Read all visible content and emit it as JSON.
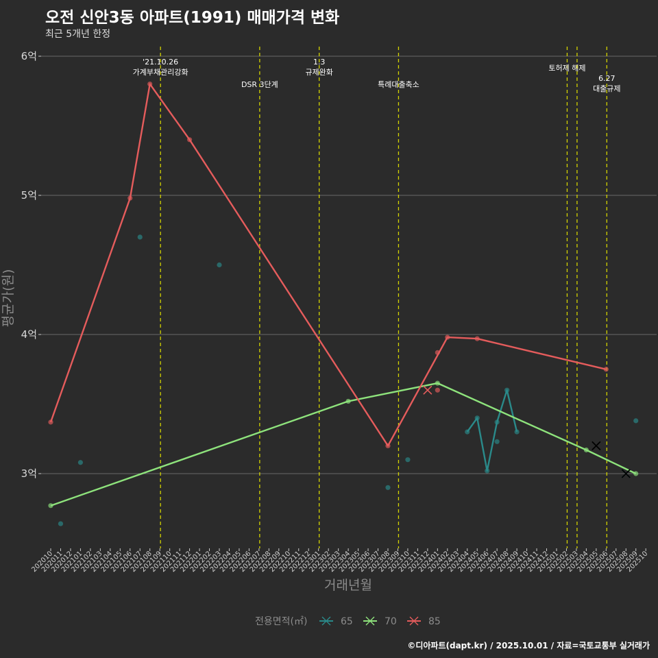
{
  "header": {
    "title": "오전 신안3동 아파트(1991) 매매가격 변화",
    "subtitle": "최근 5개년 한정"
  },
  "caption": "©디아파트(dapt.kr) / 2025.10.01 / 자료=국토교통부 실거래가",
  "colors": {
    "background": "#2b2b2b",
    "grid": "#6a6a6a",
    "vline": "#d4d400",
    "s65": "#2a8a8a",
    "s70": "#8ee37c",
    "s85": "#e55c5c"
  },
  "chart_data": {
    "type": "line",
    "title": "오전 신안3동 아파트(1991) 매매가격 변화",
    "xlabel": "거래년월",
    "ylabel": "평균가(원)",
    "ylim": [
      2.5,
      6.05
    ],
    "yticks": [
      {
        "value": 3,
        "label": "3억"
      },
      {
        "value": 4,
        "label": "4억"
      },
      {
        "value": 5,
        "label": "5억"
      },
      {
        "value": 6,
        "label": "6억"
      }
    ],
    "x": [
      "202010",
      "202011",
      "202012",
      "202101",
      "202102",
      "202103",
      "202104",
      "202105",
      "202106",
      "202107",
      "202108",
      "202109",
      "202110",
      "202111",
      "202112",
      "202201",
      "202202",
      "202203",
      "202204",
      "202205",
      "202206",
      "202207",
      "202208",
      "202209",
      "202210",
      "202211",
      "202212",
      "202301",
      "202302",
      "202303",
      "202304",
      "202305",
      "202306",
      "202307",
      "202308",
      "202309",
      "202310",
      "202311",
      "202312",
      "202401",
      "202402",
      "202403",
      "202404",
      "202405",
      "202406",
      "202407",
      "202408",
      "202409",
      "202410",
      "202411",
      "202412",
      "202501",
      "202502",
      "202503",
      "202504",
      "202505",
      "202506",
      "202507",
      "202508",
      "202509",
      "202510"
    ],
    "legend": {
      "title": "전용면적(㎡)",
      "position": "bottom",
      "items": [
        {
          "key": "s65",
          "label": "65"
        },
        {
          "key": "s70",
          "label": "70"
        },
        {
          "key": "s85",
          "label": "85"
        }
      ]
    },
    "events": [
      {
        "x": "202109",
        "label_lines": [
          "'21.10.26",
          "가계부채관리강화"
        ],
        "tier": 1
      },
      {
        "x": "202207",
        "label_lines": [
          "DSR 3단계"
        ],
        "tier": 2
      },
      {
        "x": "202301",
        "label_lines": [
          "1.3",
          "규제완화"
        ],
        "tier": 1
      },
      {
        "x": "202309",
        "label_lines": [
          "특례대출축소"
        ],
        "tier": 2
      },
      {
        "x": "202502",
        "label_lines": [
          "토허제 해제"
        ],
        "tier": 1
      },
      {
        "x": "202503",
        "label_lines": [],
        "tier": 1
      },
      {
        "x": "202506",
        "label_lines": [
          "6.27",
          "대출규제"
        ],
        "tier": 3
      }
    ],
    "series": [
      {
        "key": "s65",
        "name": "65",
        "line": [
          [
            "202404",
            3.3
          ],
          [
            "202405",
            3.4
          ],
          [
            "202406",
            3.02
          ],
          [
            "202407",
            3.37
          ],
          [
            "202408",
            3.6
          ],
          [
            "202409",
            3.3
          ]
        ],
        "points": [
          [
            "202011",
            2.64
          ],
          [
            "202101",
            3.08
          ],
          [
            "202107",
            4.7
          ],
          [
            "202203",
            4.5
          ],
          [
            "202308",
            2.9
          ],
          [
            "202310",
            3.1
          ],
          [
            "202404",
            3.3
          ],
          [
            "202405",
            3.4
          ],
          [
            "202406",
            3.02
          ],
          [
            "202407",
            3.37
          ],
          [
            "202407",
            3.23
          ],
          [
            "202408",
            3.6
          ],
          [
            "202409",
            3.3
          ],
          [
            "202509",
            3.38
          ]
        ],
        "crosses": [
          [
            "202508",
            3.0
          ]
        ]
      },
      {
        "key": "s70",
        "name": "70",
        "line": [
          [
            "202010",
            2.77
          ],
          [
            "202304",
            3.52
          ],
          [
            "202401",
            3.65
          ],
          [
            "202504",
            3.17
          ],
          [
            "202509",
            3.0
          ]
        ],
        "points": [
          [
            "202010",
            2.77
          ],
          [
            "202304",
            3.52
          ],
          [
            "202401",
            3.65
          ],
          [
            "202504",
            3.17
          ],
          [
            "202509",
            3.0
          ]
        ],
        "crosses": []
      },
      {
        "key": "s85",
        "name": "85",
        "line": [
          [
            "202010",
            3.37
          ],
          [
            "202106",
            4.98
          ],
          [
            "202108",
            5.8
          ],
          [
            "202112",
            5.4
          ],
          [
            "202308",
            3.2
          ],
          [
            "202402",
            3.98
          ],
          [
            "202405",
            3.97
          ],
          [
            "202506",
            3.75
          ]
        ],
        "points": [
          [
            "202010",
            3.37
          ],
          [
            "202106",
            4.98
          ],
          [
            "202108",
            5.8
          ],
          [
            "202112",
            5.4
          ],
          [
            "202308",
            3.2
          ],
          [
            "202401",
            3.87
          ],
          [
            "202401",
            3.6
          ],
          [
            "202402",
            3.98
          ],
          [
            "202405",
            3.97
          ],
          [
            "202506",
            3.75
          ]
        ],
        "crosses": [
          [
            "202312",
            3.6
          ]
        ]
      }
    ],
    "black_crosses": [
      [
        "202505",
        3.2
      ],
      [
        "202508",
        3.0
      ]
    ]
  }
}
